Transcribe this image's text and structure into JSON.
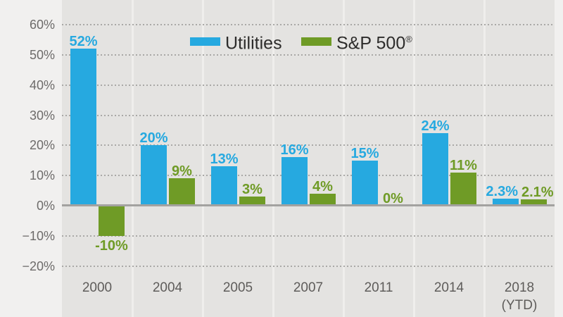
{
  "colors": {
    "utilities_blue": "#26A9E0",
    "spx_green": "#6F9B26",
    "outer_bg": "#F1F0EF",
    "plot_bg": "#E4E3E1",
    "separator": "#EFEEEC",
    "grid_dot": "#A9A8A6",
    "zero_line": "#A3A2A0",
    "axis_text": "#6D6B6A",
    "category_text": "#5E5C5A",
    "legend_text": "#2D2C2B"
  },
  "legend": {
    "items": [
      {
        "label": "Utilities",
        "mark": "",
        "color": "#26A9E0"
      },
      {
        "label": "S&P 500",
        "mark": "®",
        "color": "#6F9B26"
      }
    ]
  },
  "chart_data": {
    "type": "bar",
    "title": "",
    "xlabel": "",
    "ylabel": "",
    "legend_position": "top",
    "grid": "dotted horizontal",
    "categories": [
      "2000",
      "2004",
      "2005",
      "2007",
      "2011",
      "2014",
      "2018 (YTD)"
    ],
    "category_display": [
      "2000",
      "2004",
      "2005",
      "2007",
      "2011",
      "2014",
      "2018\n(YTD)"
    ],
    "series": [
      {
        "name": "Utilities",
        "color": "#26A9E0",
        "values": [
          52,
          20,
          13,
          16,
          15,
          24,
          2.3
        ],
        "labels": [
          "52%",
          "20%",
          "13%",
          "16%",
          "15%",
          "24%",
          "2.3%"
        ]
      },
      {
        "name": "S&P 500®",
        "color": "#6F9B26",
        "values": [
          -10,
          9,
          3,
          4,
          0,
          11,
          2.1
        ],
        "labels": [
          "-10%",
          "9%",
          "3%",
          "4%",
          "0%",
          "11%",
          "2.1%"
        ]
      }
    ],
    "yaxis": {
      "ylim": [
        -20,
        60
      ],
      "ticks": [
        {
          "label": "60%",
          "value": 60
        },
        {
          "label": "50%",
          "value": 50
        },
        {
          "label": "40%",
          "value": 40
        },
        {
          "label": "30%",
          "value": 30
        },
        {
          "label": "20%",
          "value": 20
        },
        {
          "label": "10%",
          "value": 10
        },
        {
          "label": "0%",
          "value": 0
        },
        {
          "label": "−10%",
          "value": -10
        },
        {
          "label": "−20%",
          "value": -20
        }
      ]
    }
  }
}
